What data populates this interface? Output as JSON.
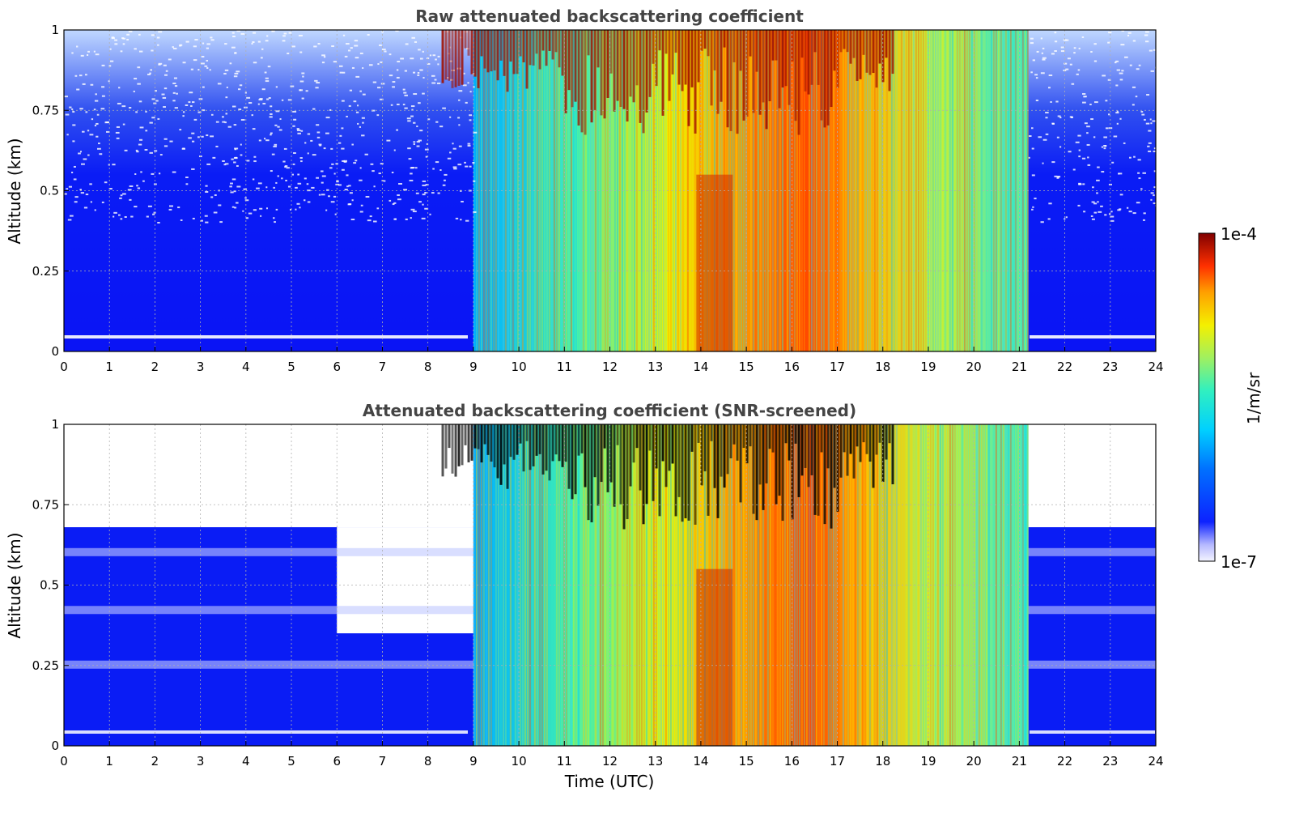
{
  "chart_data": [
    {
      "type": "heatmap",
      "title": "Raw attenuated backscattering coefficient",
      "xlabel": "",
      "ylabel": "Altitude (km)",
      "x_ticks": [
        "0",
        "1",
        "2",
        "3",
        "4",
        "5",
        "6",
        "7",
        "8",
        "9",
        "10",
        "11",
        "12",
        "13",
        "14",
        "15",
        "16",
        "17",
        "18",
        "19",
        "20",
        "21",
        "22",
        "23",
        "24"
      ],
      "y_ticks": [
        "0",
        "0.25",
        "0.5",
        "0.75",
        "1"
      ],
      "xlim": [
        0,
        24
      ],
      "ylim": [
        0,
        1
      ],
      "grid": true,
      "colormap": "jet",
      "colorbar": {
        "min_label": "1e-7",
        "max_label": "1e-4",
        "label": "1/m/sr",
        "scale": "log"
      },
      "features": {
        "signal_window_hours": [
          9.0,
          21.2
        ],
        "cloud_top_base_km": 0.55,
        "max_core_hours": [
          13.9,
          14.7
        ],
        "instrument_line_km": 0.04
      }
    },
    {
      "type": "heatmap",
      "title": "Attenuated backscattering coefficient (SNR-screened)",
      "xlabel": "Time (UTC)",
      "ylabel": "Altitude (km)",
      "x_ticks": [
        "0",
        "1",
        "2",
        "3",
        "4",
        "5",
        "6",
        "7",
        "8",
        "9",
        "10",
        "11",
        "12",
        "13",
        "14",
        "15",
        "16",
        "17",
        "18",
        "19",
        "20",
        "21",
        "22",
        "23",
        "24"
      ],
      "y_ticks": [
        "0",
        "0.25",
        "0.5",
        "0.75",
        "1"
      ],
      "xlim": [
        0,
        24
      ],
      "ylim": [
        0,
        1
      ],
      "grid": true,
      "colormap": "jet",
      "colorbar": {
        "min_label": "1e-7",
        "max_label": "1e-4",
        "label": "1/m/sr",
        "scale": "log"
      },
      "features": {
        "signal_window_hours": [
          9.0,
          21.2
        ],
        "screened_above_km_early": 0.68,
        "instrument_line_km": 0.04
      }
    }
  ],
  "colors": {
    "background": "#ffffff",
    "title": "#444444",
    "low_signal": "#0a1cf5",
    "screened": "#ffffff",
    "saturated": "#000000"
  }
}
